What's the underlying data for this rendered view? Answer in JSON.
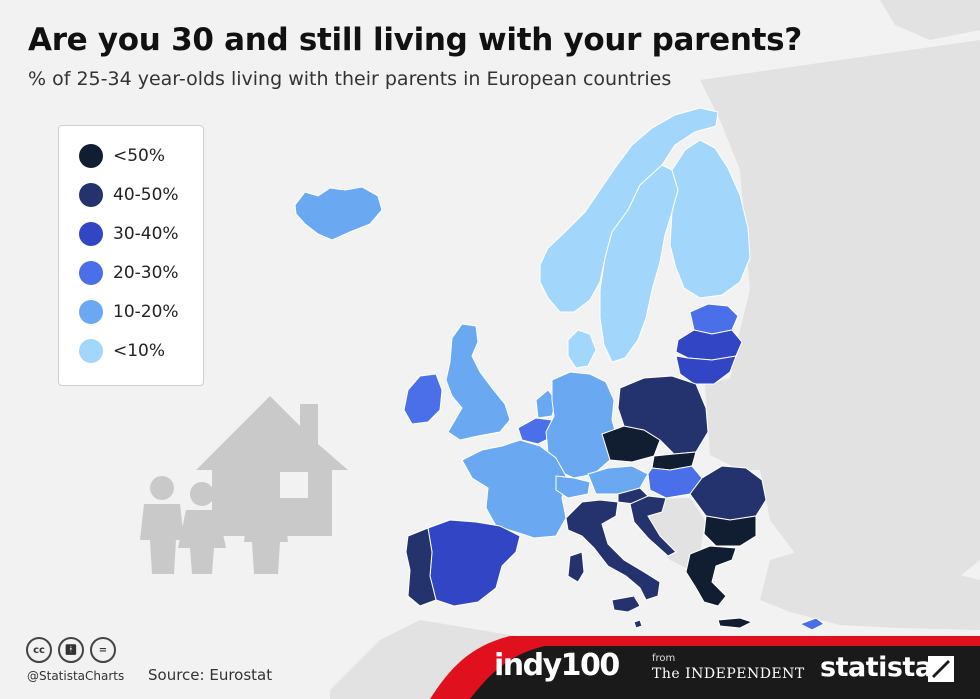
{
  "title": "Are you 30 and still living with your parents?",
  "subtitle": "% of 25-34 year-olds living with their parents in European countries",
  "colors": {
    "<50%": "#111d30",
    "40-50%": "#24336e",
    "30-40%": "#3245c4",
    "20-30%": "#4a6fe8",
    "10-20%": "#6aa8f2",
    "<10%": "#a3d6fb",
    "no_data": "#e2e2e2",
    "background": "#f2f2f2",
    "footer_red": "#e0101e",
    "footer_dark": "#1a1a1a"
  },
  "chart_data": {
    "type": "choropleth",
    "title": "Are you 30 and still living with your parents?",
    "subtitle": "% of 25-34 year-olds living with their parents in European countries",
    "legend": {
      "placement": "top-left",
      "entries": [
        "<50%",
        "40-50%",
        "30-40%",
        "20-30%",
        "10-20%",
        "<10%"
      ]
    },
    "regions": [
      {
        "name": "Iceland",
        "category": "10-20%"
      },
      {
        "name": "Norway",
        "category": "<10%"
      },
      {
        "name": "Sweden",
        "category": "<10%"
      },
      {
        "name": "Finland",
        "category": "<10%"
      },
      {
        "name": "Denmark",
        "category": "<10%"
      },
      {
        "name": "Estonia",
        "category": "20-30%"
      },
      {
        "name": "Latvia",
        "category": "30-40%"
      },
      {
        "name": "Lithuania",
        "category": "30-40%"
      },
      {
        "name": "United Kingdom",
        "category": "10-20%"
      },
      {
        "name": "Ireland",
        "category": "20-30%"
      },
      {
        "name": "Netherlands",
        "category": "10-20%"
      },
      {
        "name": "Belgium",
        "category": "20-30%"
      },
      {
        "name": "Luxembourg",
        "category": "20-30%"
      },
      {
        "name": "Germany",
        "category": "10-20%"
      },
      {
        "name": "France",
        "category": "10-20%"
      },
      {
        "name": "Switzerland",
        "category": "10-20%"
      },
      {
        "name": "Austria",
        "category": "10-20%"
      },
      {
        "name": "Poland",
        "category": "40-50%"
      },
      {
        "name": "Czech Republic",
        "category": "<50%"
      },
      {
        "name": "Slovakia",
        "category": "<50%"
      },
      {
        "name": "Hungary",
        "category": "20-30%"
      },
      {
        "name": "Slovenia",
        "category": "40-50%"
      },
      {
        "name": "Croatia",
        "category": "40-50%"
      },
      {
        "name": "Romania",
        "category": "40-50%"
      },
      {
        "name": "Bulgaria",
        "category": "<50%"
      },
      {
        "name": "Greece",
        "category": "<50%"
      },
      {
        "name": "Italy",
        "category": "40-50%"
      },
      {
        "name": "Malta",
        "category": "40-50%"
      },
      {
        "name": "Spain",
        "category": "30-40%"
      },
      {
        "name": "Portugal",
        "category": "40-50%"
      },
      {
        "name": "Cyprus",
        "category": "20-30%"
      }
    ]
  },
  "footer": {
    "credit": "@StatistaCharts",
    "source": "Source: Eurostat",
    "indy_brand": "indy100",
    "from_label": "from",
    "independent_brand": "The INDEPENDENT",
    "statista_brand": "statista",
    "cc_icons": [
      "cc-icon",
      "by-icon",
      "nd-icon"
    ]
  }
}
